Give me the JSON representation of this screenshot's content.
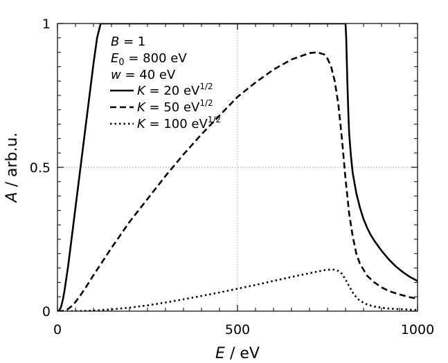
{
  "chart_data": {
    "type": "line",
    "title": "",
    "xlabel_symbol": "E",
    "xlabel_unit": " / eV",
    "ylabel_symbol": "A",
    "ylabel_unit": " / arb.u.",
    "xlim": [
      0,
      1000
    ],
    "ylim": [
      0,
      1
    ],
    "x_ticks": [
      0,
      500,
      1000
    ],
    "x_tick_labels": [
      "0",
      "500",
      "1000"
    ],
    "y_ticks": [
      0,
      0.5,
      1
    ],
    "y_tick_labels": [
      "0",
      "0.5",
      "1"
    ],
    "x_minor_step": 50,
    "y_minor_step": 0.05,
    "grid": true,
    "grid_lines_x": [
      500
    ],
    "grid_lines_y": [
      0.5
    ],
    "params": {
      "B": {
        "symbol": "B",
        "text": " = 1"
      },
      "E0": {
        "symbol": "E",
        "sub": "0",
        "text": " = 800 eV"
      },
      "w": {
        "symbol": "w",
        "text": " = 40 eV"
      }
    },
    "series": [
      {
        "name": "K = 20 eV^1/2",
        "legend_symbol": "K",
        "legend_text": " = 20 eV",
        "legend_sup": "1/2",
        "style": "solid",
        "x": [
          0,
          5,
          10,
          15,
          20,
          30,
          40,
          50,
          60,
          70,
          80,
          90,
          100,
          110,
          120,
          800,
          802,
          805,
          808,
          810,
          815,
          820,
          830,
          840,
          850,
          860,
          870,
          880,
          900,
          920,
          940,
          960,
          980,
          1000
        ],
        "y": [
          0,
          0.002,
          0.015,
          0.04,
          0.075,
          0.16,
          0.26,
          0.36,
          0.46,
          0.56,
          0.66,
          0.76,
          0.86,
          0.95,
          1.0,
          1.0,
          0.95,
          0.8,
          0.68,
          0.62,
          0.54,
          0.48,
          0.41,
          0.36,
          0.32,
          0.29,
          0.265,
          0.245,
          0.21,
          0.18,
          0.155,
          0.135,
          0.118,
          0.105
        ]
      },
      {
        "name": "K = 50 eV^1/2",
        "legend_symbol": "K",
        "legend_text": " = 50 eV",
        "legend_sup": "1/2",
        "style": "dashed",
        "x": [
          0,
          10,
          20,
          30,
          40,
          50,
          60,
          80,
          100,
          150,
          200,
          250,
          300,
          350,
          400,
          450,
          500,
          550,
          600,
          650,
          700,
          720,
          740,
          750,
          760,
          770,
          780,
          790,
          800,
          810,
          820,
          830,
          840,
          860,
          880,
          900,
          920,
          950,
          980,
          1000
        ],
        "y": [
          0,
          0.0,
          0.002,
          0.008,
          0.018,
          0.032,
          0.048,
          0.085,
          0.125,
          0.22,
          0.31,
          0.39,
          0.47,
          0.545,
          0.615,
          0.68,
          0.745,
          0.795,
          0.84,
          0.875,
          0.897,
          0.9,
          0.893,
          0.878,
          0.85,
          0.8,
          0.72,
          0.6,
          0.46,
          0.34,
          0.26,
          0.2,
          0.165,
          0.123,
          0.1,
          0.083,
          0.07,
          0.058,
          0.048,
          0.043
        ]
      },
      {
        "name": "K = 100 eV^1/2",
        "legend_symbol": "K",
        "legend_text": " = 100 eV",
        "legend_sup": "1/2",
        "style": "dotted",
        "x": [
          0,
          50,
          100,
          150,
          200,
          250,
          300,
          350,
          400,
          450,
          500,
          550,
          600,
          650,
          700,
          720,
          740,
          760,
          770,
          780,
          790,
          800,
          810,
          820,
          830,
          840,
          860,
          880,
          900,
          920,
          950,
          980,
          1000
        ],
        "y": [
          0,
          0.0,
          0.002,
          0.006,
          0.012,
          0.02,
          0.03,
          0.041,
          0.053,
          0.065,
          0.078,
          0.091,
          0.105,
          0.119,
          0.132,
          0.137,
          0.142,
          0.145,
          0.144,
          0.14,
          0.13,
          0.11,
          0.087,
          0.065,
          0.048,
          0.036,
          0.023,
          0.016,
          0.012,
          0.009,
          0.007,
          0.005,
          0.004
        ]
      }
    ]
  }
}
